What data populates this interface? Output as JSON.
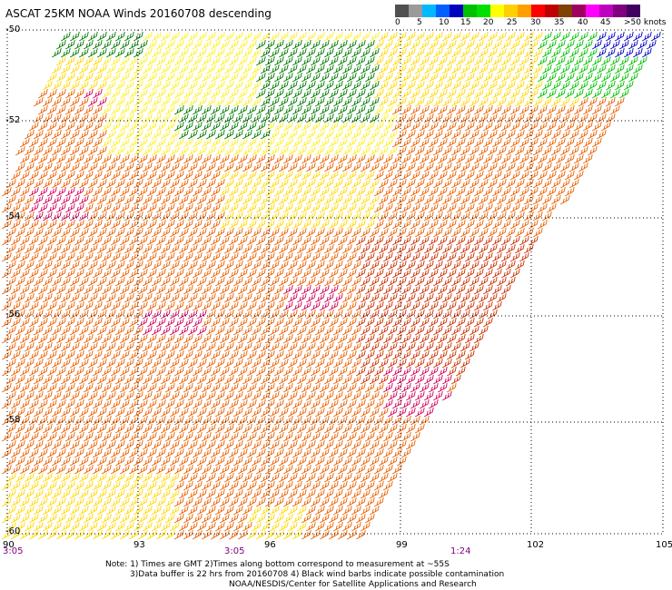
{
  "title": "ASCAT 25KM NOAA Winds 20160708 descending",
  "colorbar": {
    "labels": [
      "0",
      "5",
      "10",
      "15",
      "20",
      "25",
      "30",
      "35",
      "40",
      "45",
      ">50 knots"
    ],
    "colors": [
      "#505050",
      "#9a9a9a",
      "#00b8ff",
      "#0060ff",
      "#0000c0",
      "#00c000",
      "#00e000",
      "#ffff00",
      "#ffd000",
      "#ffa000",
      "#ff0000",
      "#c00000",
      "#804000",
      "#a00060",
      "#ff00ff",
      "#c000c0",
      "#800080",
      "#400060"
    ]
  },
  "y_labels": [
    "-50",
    "-52",
    "-54",
    "-56",
    "-58",
    "-60"
  ],
  "x_labels": [
    "90",
    "93",
    "96",
    "99",
    "102",
    "105"
  ],
  "time_labels": [
    "3:05",
    "3:05",
    "1:24"
  ],
  "notes": [
    "Note: 1) Times are GMT 2)Times along bottom correspond to measurement at ~55S",
    "3)Data buffer is 22 hrs from 20160708 4) Black wind barbs indicate possible contamination",
    "NOAA/NESDIS/Center for Satellite Applications and Research"
  ],
  "swath_colors": {
    "orange": "#e86000",
    "yellow": "#ffd800",
    "lightyellow": "#ffee20",
    "green": "#007a00",
    "brightgreen": "#00c000",
    "blue": "#0000c0",
    "magenta": "#d0005a",
    "dark_orange": "#c83000"
  }
}
